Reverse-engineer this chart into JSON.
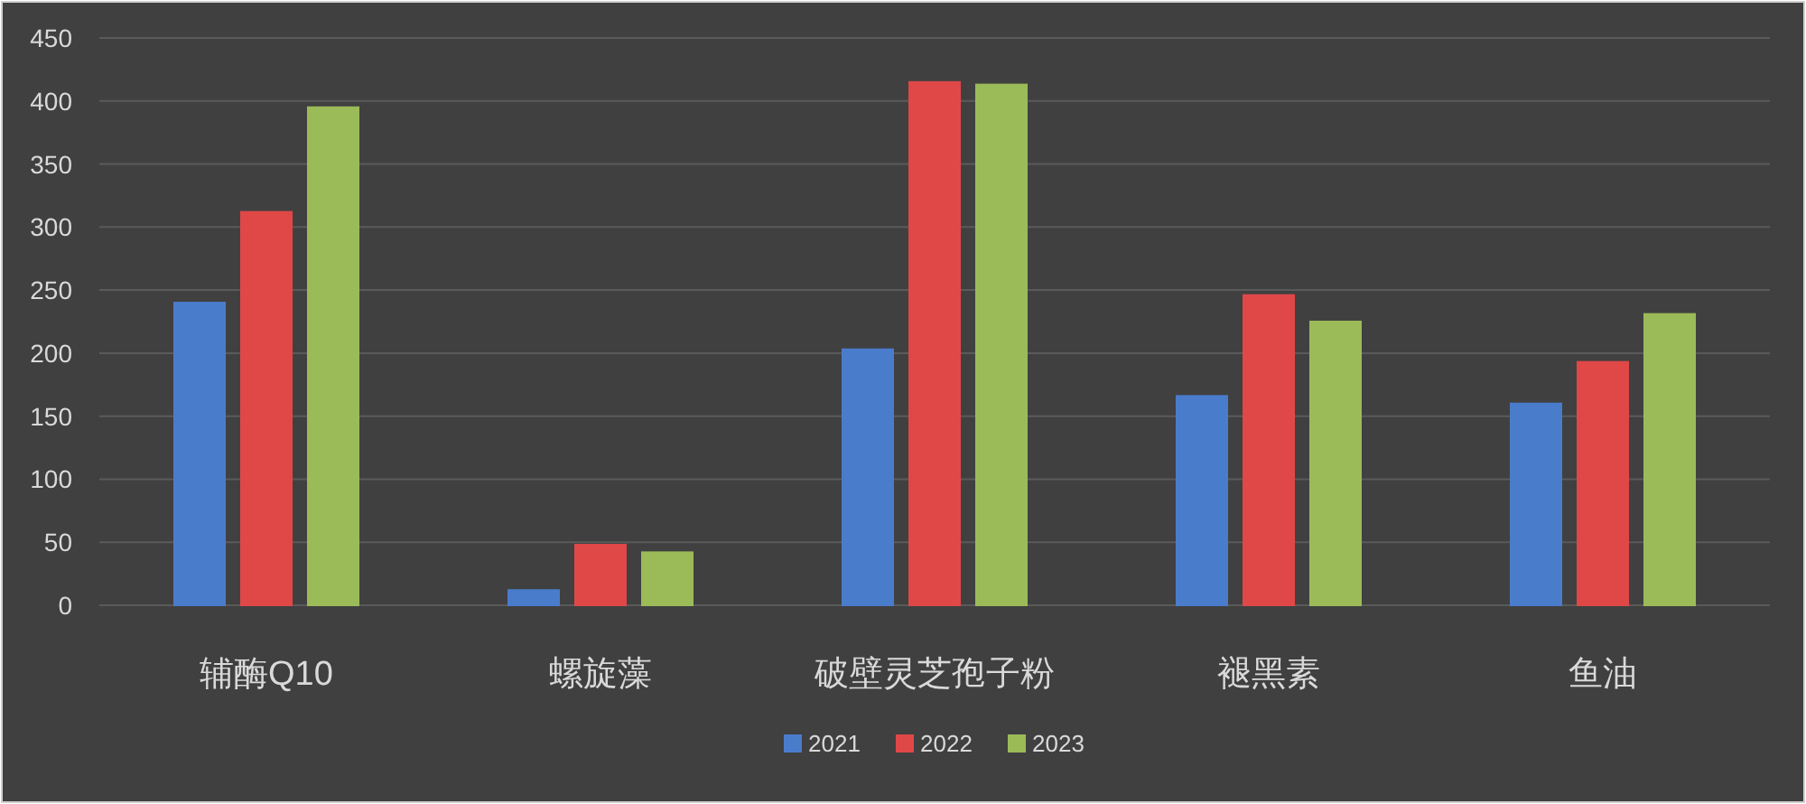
{
  "chart_data": {
    "type": "bar",
    "categories": [
      "辅酶Q10",
      "螺旋藻",
      "破壁灵芝孢子粉",
      "褪黑素",
      "鱼油"
    ],
    "series": [
      {
        "name": "2021",
        "color": "#4a7ccc",
        "values": [
          240,
          12,
          203,
          166,
          160
        ]
      },
      {
        "name": "2022",
        "color": "#e04848",
        "values": [
          312,
          48,
          415,
          246,
          193
        ]
      },
      {
        "name": "2023",
        "color": "#9bbb59",
        "values": [
          395,
          42,
          413,
          225,
          231
        ]
      }
    ],
    "ylim": [
      0,
      450
    ],
    "yticks": [
      0,
      50,
      100,
      150,
      200,
      250,
      300,
      350,
      400,
      450
    ],
    "grid": "y",
    "legend": "bottom"
  }
}
